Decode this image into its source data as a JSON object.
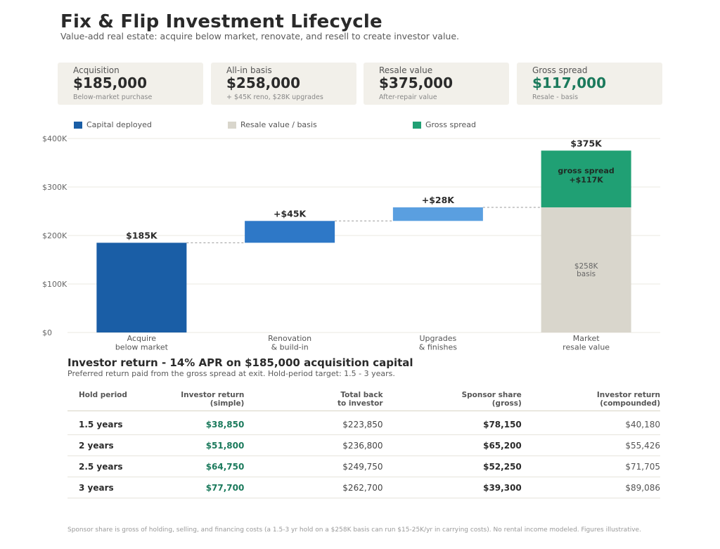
{
  "header": {
    "title": "Fix & Flip Investment Lifecycle",
    "subtitle": "Value-add real estate: acquire below market, renovate, and resell to create investor value."
  },
  "cards": [
    {
      "label": "Acquisition",
      "value": "$185,000",
      "sub": "Below-market purchase"
    },
    {
      "label": "All-in basis",
      "value": "$258,000",
      "sub": "+ $45K reno, $28K upgrades"
    },
    {
      "label": "Resale value",
      "value": "$375,000",
      "sub": "After-repair value"
    },
    {
      "label": "Gross spread",
      "value": "$117,000",
      "sub": "Resale - basis"
    }
  ],
  "legend": [
    {
      "label": "Capital deployed",
      "color": "#1a5ea6"
    },
    {
      "label": "Resale value / basis",
      "color": "#d9d6cc"
    },
    {
      "label": "Gross spread",
      "color": "#20a074"
    }
  ],
  "colors": {
    "capital": "#1a5ea6",
    "renovation": "#2e78c7",
    "upgrades": "#5a9fe0",
    "basis": "#d9d6cc",
    "spread": "#20a074",
    "accent_green": "#1b7a5c"
  },
  "chart_data": {
    "type": "bar",
    "subtype": "waterfall",
    "categories": [
      "Acquire\nbelow market",
      "Renovation\n& build-in",
      "Upgrades\n& finishes",
      "Market\nresale value"
    ],
    "ylim": [
      0,
      400
    ],
    "yticks": [
      0,
      100,
      200,
      300,
      400
    ],
    "ytick_labels": [
      "$0",
      "$100K",
      "$200K",
      "$300K",
      "$400K"
    ],
    "unit": "$K",
    "grid": true,
    "legend_position": "top",
    "bars": [
      {
        "category": "Acquire\nbelow market",
        "base": 0,
        "value": 185,
        "label": "$185K",
        "color_key": "capital"
      },
      {
        "category": "Renovation\n& build-in",
        "base": 185,
        "value": 45,
        "label": "+$45K",
        "color_key": "renovation"
      },
      {
        "category": "Upgrades\n& finishes",
        "base": 230,
        "value": 28,
        "label": "+$28K",
        "color_key": "upgrades"
      }
    ],
    "final_bar": {
      "category": "Market\nresale value",
      "total_label": "$375K",
      "segments": [
        {
          "name": "basis",
          "base": 0,
          "value": 258,
          "label": "$258K\nbasis",
          "color_key": "basis"
        },
        {
          "name": "spread",
          "base": 258,
          "value": 117,
          "label": "gross spread\n+$117K",
          "color_key": "spread"
        }
      ]
    },
    "connectors": [
      185,
      230,
      258
    ]
  },
  "investor": {
    "title": "Investor return  -  14% APR on $185,000 acquisition capital",
    "subtitle": "Preferred return paid from the gross spread at exit. Hold-period target: 1.5 - 3 years.",
    "columns": [
      "Hold period",
      "Investor return\n(simple)",
      "Total back\nto investor",
      "Sponsor share\n(gross)",
      "Investor return\n(compounded)"
    ],
    "rows": [
      [
        "1.5 years",
        "$38,850",
        "$223,850",
        "$78,150",
        "$40,180"
      ],
      [
        "2 years",
        "$51,800",
        "$236,800",
        "$65,200",
        "$55,426"
      ],
      [
        "2.5 years",
        "$64,750",
        "$249,750",
        "$52,250",
        "$71,705"
      ],
      [
        "3 years",
        "$77,700",
        "$262,700",
        "$39,300",
        "$89,086"
      ]
    ]
  },
  "footnote": "Sponsor share is gross of holding, selling, and financing costs (a 1.5-3 yr hold on a $258K basis can run $15-25K/yr in carrying costs). No rental income modeled. Figures illustrative."
}
